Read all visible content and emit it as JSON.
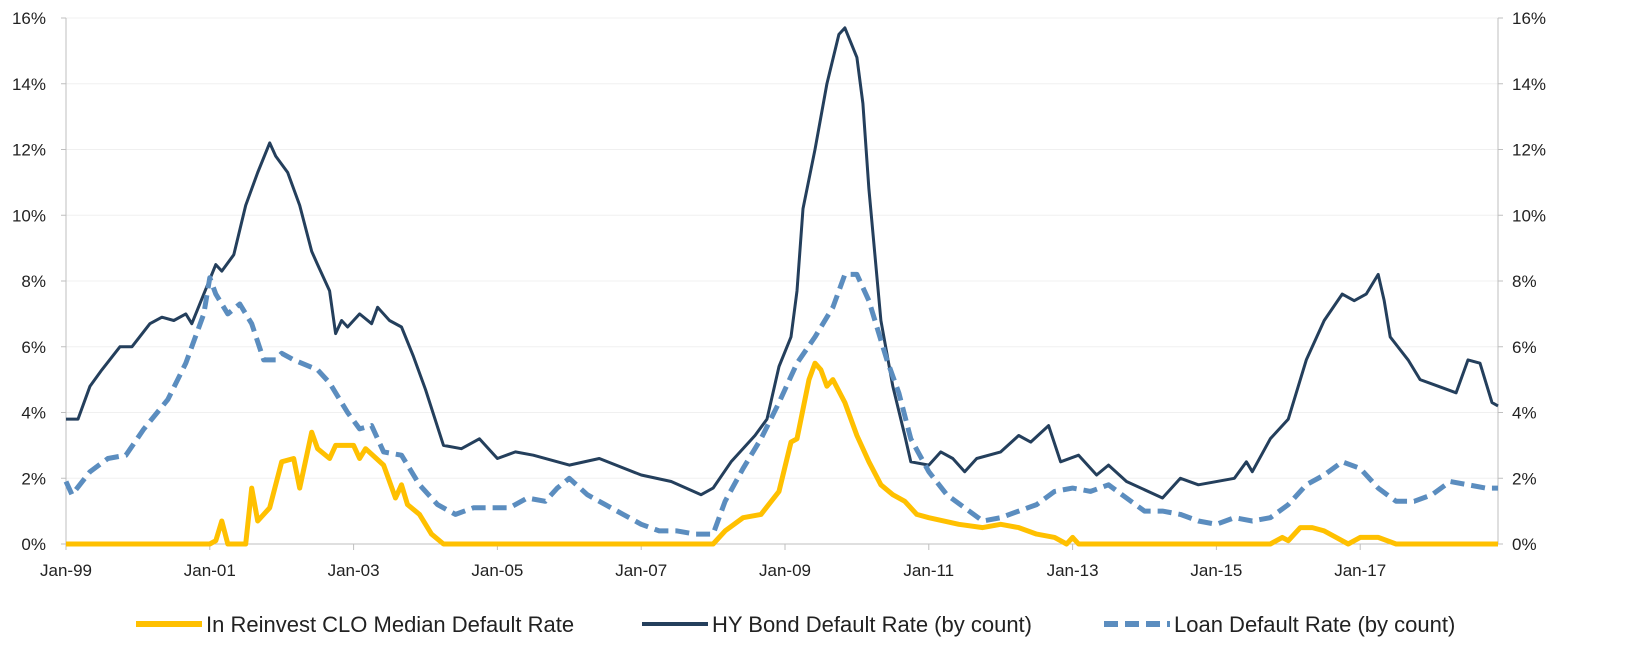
{
  "chart_data": {
    "type": "line",
    "title": "",
    "xlabel": "",
    "ylabel": "",
    "x_start": "1999-01",
    "x_end": "2018-12",
    "x_ticks": [
      "Jan-99",
      "Jan-01",
      "Jan-03",
      "Jan-05",
      "Jan-07",
      "Jan-09",
      "Jan-11",
      "Jan-13",
      "Jan-15",
      "Jan-17"
    ],
    "ylim": [
      0,
      16
    ],
    "y_ticks": [
      "0%",
      "2%",
      "4%",
      "6%",
      "8%",
      "10%",
      "12%",
      "14%",
      "16%"
    ],
    "secondary_y_ticks": [
      "0%",
      "2%",
      "4%",
      "6%",
      "8%",
      "10%",
      "12%",
      "14%",
      "16%"
    ],
    "grid": true,
    "legend_position": "bottom",
    "series": [
      {
        "name": "In Reinvest CLO Median Default Rate",
        "color": "#FFC000",
        "style": "solid-thick",
        "points": [
          [
            "1999-01",
            0
          ],
          [
            "2001-01",
            0
          ],
          [
            "2001-02",
            0.1
          ],
          [
            "2001-03",
            0.7
          ],
          [
            "2001-04",
            0
          ],
          [
            "2001-07",
            0
          ],
          [
            "2001-08",
            1.7
          ],
          [
            "2001-09",
            0.7
          ],
          [
            "2001-11",
            1.1
          ],
          [
            "2002-01",
            2.5
          ],
          [
            "2002-03",
            2.6
          ],
          [
            "2002-04",
            1.7
          ],
          [
            "2002-06",
            3.4
          ],
          [
            "2002-07",
            2.9
          ],
          [
            "2002-09",
            2.6
          ],
          [
            "2002-10",
            3.0
          ],
          [
            "2003-01",
            3.0
          ],
          [
            "2003-02",
            2.6
          ],
          [
            "2003-03",
            2.9
          ],
          [
            "2003-06",
            2.4
          ],
          [
            "2003-08",
            1.4
          ],
          [
            "2003-09",
            1.8
          ],
          [
            "2003-10",
            1.2
          ],
          [
            "2003-12",
            0.9
          ],
          [
            "2004-02",
            0.3
          ],
          [
            "2004-04",
            0
          ],
          [
            "2008-01",
            0
          ],
          [
            "2008-03",
            0.4
          ],
          [
            "2008-06",
            0.8
          ],
          [
            "2008-09",
            0.9
          ],
          [
            "2008-12",
            1.6
          ],
          [
            "2009-02",
            3.1
          ],
          [
            "2009-03",
            3.2
          ],
          [
            "2009-05",
            5.0
          ],
          [
            "2009-06",
            5.5
          ],
          [
            "2009-07",
            5.3
          ],
          [
            "2009-08",
            4.8
          ],
          [
            "2009-09",
            5.0
          ],
          [
            "2009-11",
            4.3
          ],
          [
            "2010-01",
            3.3
          ],
          [
            "2010-03",
            2.5
          ],
          [
            "2010-05",
            1.8
          ],
          [
            "2010-07",
            1.5
          ],
          [
            "2010-09",
            1.3
          ],
          [
            "2010-11",
            0.9
          ],
          [
            "2011-01",
            0.8
          ],
          [
            "2011-06",
            0.6
          ],
          [
            "2011-10",
            0.5
          ],
          [
            "2012-01",
            0.6
          ],
          [
            "2012-04",
            0.5
          ],
          [
            "2012-07",
            0.3
          ],
          [
            "2012-10",
            0.2
          ],
          [
            "2012-12",
            0
          ],
          [
            "2013-01",
            0.2
          ],
          [
            "2013-02",
            0
          ],
          [
            "2015-10",
            0
          ],
          [
            "2015-12",
            0.2
          ],
          [
            "2016-01",
            0.1
          ],
          [
            "2016-03",
            0.5
          ],
          [
            "2016-05",
            0.5
          ],
          [
            "2016-07",
            0.4
          ],
          [
            "2016-09",
            0.2
          ],
          [
            "2016-11",
            0
          ],
          [
            "2017-01",
            0.2
          ],
          [
            "2017-04",
            0.2
          ],
          [
            "2017-07",
            0
          ],
          [
            "2018-12",
            0
          ]
        ]
      },
      {
        "name": "HY Bond Default Rate (by count)",
        "color": "#243F5C",
        "style": "solid",
        "points": [
          [
            "1999-01",
            3.8
          ],
          [
            "1999-03",
            3.8
          ],
          [
            "1999-05",
            4.8
          ],
          [
            "1999-07",
            5.3
          ],
          [
            "1999-10",
            6.0
          ],
          [
            "1999-12",
            6.0
          ],
          [
            "2000-03",
            6.7
          ],
          [
            "2000-05",
            6.9
          ],
          [
            "2000-07",
            6.8
          ],
          [
            "2000-09",
            7.0
          ],
          [
            "2000-10",
            6.7
          ],
          [
            "2000-12",
            7.6
          ],
          [
            "2001-02",
            8.5
          ],
          [
            "2001-03",
            8.3
          ],
          [
            "2001-05",
            8.8
          ],
          [
            "2001-07",
            10.3
          ],
          [
            "2001-09",
            11.3
          ],
          [
            "2001-11",
            12.2
          ],
          [
            "2001-12",
            11.8
          ],
          [
            "2002-02",
            11.3
          ],
          [
            "2002-04",
            10.3
          ],
          [
            "2002-06",
            8.9
          ],
          [
            "2002-07",
            8.5
          ],
          [
            "2002-09",
            7.7
          ],
          [
            "2002-10",
            6.4
          ],
          [
            "2002-11",
            6.8
          ],
          [
            "2002-12",
            6.6
          ],
          [
            "2003-02",
            7.0
          ],
          [
            "2003-04",
            6.7
          ],
          [
            "2003-05",
            7.2
          ],
          [
            "2003-07",
            6.8
          ],
          [
            "2003-09",
            6.6
          ],
          [
            "2003-11",
            5.7
          ],
          [
            "2004-01",
            4.7
          ],
          [
            "2004-04",
            3.0
          ],
          [
            "2004-07",
            2.9
          ],
          [
            "2004-10",
            3.2
          ],
          [
            "2005-01",
            2.6
          ],
          [
            "2005-04",
            2.8
          ],
          [
            "2005-07",
            2.7
          ],
          [
            "2006-01",
            2.4
          ],
          [
            "2006-06",
            2.6
          ],
          [
            "2007-01",
            2.1
          ],
          [
            "2007-06",
            1.9
          ],
          [
            "2007-11",
            1.5
          ],
          [
            "2008-01",
            1.7
          ],
          [
            "2008-04",
            2.5
          ],
          [
            "2008-08",
            3.3
          ],
          [
            "2008-10",
            3.8
          ],
          [
            "2008-12",
            5.4
          ],
          [
            "2009-02",
            6.3
          ],
          [
            "2009-03",
            7.7
          ],
          [
            "2009-04",
            10.2
          ],
          [
            "2009-06",
            12.0
          ],
          [
            "2009-08",
            14.0
          ],
          [
            "2009-10",
            15.5
          ],
          [
            "2009-11",
            15.7
          ],
          [
            "2010-01",
            14.8
          ],
          [
            "2010-02",
            13.4
          ],
          [
            "2010-03",
            10.8
          ],
          [
            "2010-05",
            6.8
          ],
          [
            "2010-07",
            4.8
          ],
          [
            "2010-09",
            3.3
          ],
          [
            "2010-10",
            2.5
          ],
          [
            "2011-01",
            2.4
          ],
          [
            "2011-03",
            2.8
          ],
          [
            "2011-05",
            2.6
          ],
          [
            "2011-07",
            2.2
          ],
          [
            "2011-09",
            2.6
          ],
          [
            "2012-01",
            2.8
          ],
          [
            "2012-04",
            3.3
          ],
          [
            "2012-06",
            3.1
          ],
          [
            "2012-09",
            3.6
          ],
          [
            "2012-11",
            2.5
          ],
          [
            "2013-02",
            2.7
          ],
          [
            "2013-05",
            2.1
          ],
          [
            "2013-07",
            2.4
          ],
          [
            "2013-10",
            1.9
          ],
          [
            "2014-04",
            1.4
          ],
          [
            "2014-07",
            2.0
          ],
          [
            "2014-10",
            1.8
          ],
          [
            "2015-04",
            2.0
          ],
          [
            "2015-06",
            2.5
          ],
          [
            "2015-07",
            2.2
          ],
          [
            "2015-10",
            3.2
          ],
          [
            "2016-01",
            3.8
          ],
          [
            "2016-04",
            5.6
          ],
          [
            "2016-07",
            6.8
          ],
          [
            "2016-10",
            7.6
          ],
          [
            "2016-12",
            7.4
          ],
          [
            "2017-02",
            7.6
          ],
          [
            "2017-04",
            8.2
          ],
          [
            "2017-05",
            7.4
          ],
          [
            "2017-06",
            6.3
          ],
          [
            "2017-09",
            5.6
          ],
          [
            "2017-11",
            5.0
          ],
          [
            "2018-02",
            4.8
          ],
          [
            "2018-05",
            4.6
          ],
          [
            "2018-07",
            5.6
          ],
          [
            "2018-09",
            5.5
          ],
          [
            "2018-11",
            4.3
          ],
          [
            "2018-12",
            4.2
          ]
        ]
      },
      {
        "name": "Loan Default Rate (by count)",
        "color": "#5B8DBF",
        "style": "dashed-thick",
        "points": [
          [
            "1999-01",
            1.9
          ],
          [
            "1999-02",
            1.5
          ],
          [
            "1999-05",
            2.2
          ],
          [
            "1999-08",
            2.6
          ],
          [
            "1999-11",
            2.7
          ],
          [
            "2000-02",
            3.5
          ],
          [
            "2000-06",
            4.4
          ],
          [
            "2000-09",
            5.5
          ],
          [
            "2000-12",
            7.0
          ],
          [
            "2001-01",
            8.1
          ],
          [
            "2001-02",
            7.6
          ],
          [
            "2001-04",
            7.0
          ],
          [
            "2001-06",
            7.3
          ],
          [
            "2001-08",
            6.7
          ],
          [
            "2001-10",
            5.6
          ],
          [
            "2001-12",
            5.6
          ],
          [
            "2002-01",
            5.8
          ],
          [
            "2002-03",
            5.6
          ],
          [
            "2002-07",
            5.3
          ],
          [
            "2002-09",
            4.9
          ],
          [
            "2002-12",
            4.0
          ],
          [
            "2003-02",
            3.5
          ],
          [
            "2003-04",
            3.6
          ],
          [
            "2003-06",
            2.8
          ],
          [
            "2003-09",
            2.7
          ],
          [
            "2003-12",
            1.8
          ],
          [
            "2004-03",
            1.2
          ],
          [
            "2004-06",
            0.9
          ],
          [
            "2004-09",
            1.1
          ],
          [
            "2004-12",
            1.1
          ],
          [
            "2005-03",
            1.1
          ],
          [
            "2005-06",
            1.4
          ],
          [
            "2005-09",
            1.3
          ],
          [
            "2005-11",
            1.7
          ],
          [
            "2006-01",
            2.0
          ],
          [
            "2006-04",
            1.5
          ],
          [
            "2006-07",
            1.2
          ],
          [
            "2006-10",
            0.9
          ],
          [
            "2007-01",
            0.6
          ],
          [
            "2007-04",
            0.4
          ],
          [
            "2007-07",
            0.4
          ],
          [
            "2007-10",
            0.3
          ],
          [
            "2008-01",
            0.3
          ],
          [
            "2008-03",
            1.3
          ],
          [
            "2008-06",
            2.3
          ],
          [
            "2008-09",
            3.2
          ],
          [
            "2008-12",
            4.3
          ],
          [
            "2009-03",
            5.5
          ],
          [
            "2009-06",
            6.3
          ],
          [
            "2009-09",
            7.2
          ],
          [
            "2009-11",
            8.2
          ],
          [
            "2010-01",
            8.2
          ],
          [
            "2010-03",
            7.4
          ],
          [
            "2010-06",
            5.6
          ],
          [
            "2010-08",
            4.6
          ],
          [
            "2010-10",
            3.2
          ],
          [
            "2011-01",
            2.2
          ],
          [
            "2011-04",
            1.5
          ],
          [
            "2011-07",
            1.1
          ],
          [
            "2011-10",
            0.7
          ],
          [
            "2012-01",
            0.8
          ],
          [
            "2012-04",
            1.0
          ],
          [
            "2012-07",
            1.2
          ],
          [
            "2012-10",
            1.6
          ],
          [
            "2013-01",
            1.7
          ],
          [
            "2013-04",
            1.6
          ],
          [
            "2013-07",
            1.8
          ],
          [
            "2013-10",
            1.4
          ],
          [
            "2014-01",
            1.0
          ],
          [
            "2014-04",
            1.0
          ],
          [
            "2014-07",
            0.9
          ],
          [
            "2014-10",
            0.7
          ],
          [
            "2015-01",
            0.6
          ],
          [
            "2015-04",
            0.8
          ],
          [
            "2015-07",
            0.7
          ],
          [
            "2015-10",
            0.8
          ],
          [
            "2016-01",
            1.2
          ],
          [
            "2016-04",
            1.8
          ],
          [
            "2016-07",
            2.1
          ],
          [
            "2016-10",
            2.5
          ],
          [
            "2017-01",
            2.3
          ],
          [
            "2017-04",
            1.7
          ],
          [
            "2017-07",
            1.3
          ],
          [
            "2017-10",
            1.3
          ],
          [
            "2018-01",
            1.5
          ],
          [
            "2018-04",
            1.9
          ],
          [
            "2018-07",
            1.8
          ],
          [
            "2018-10",
            1.7
          ],
          [
            "2018-12",
            1.7
          ]
        ]
      }
    ]
  }
}
